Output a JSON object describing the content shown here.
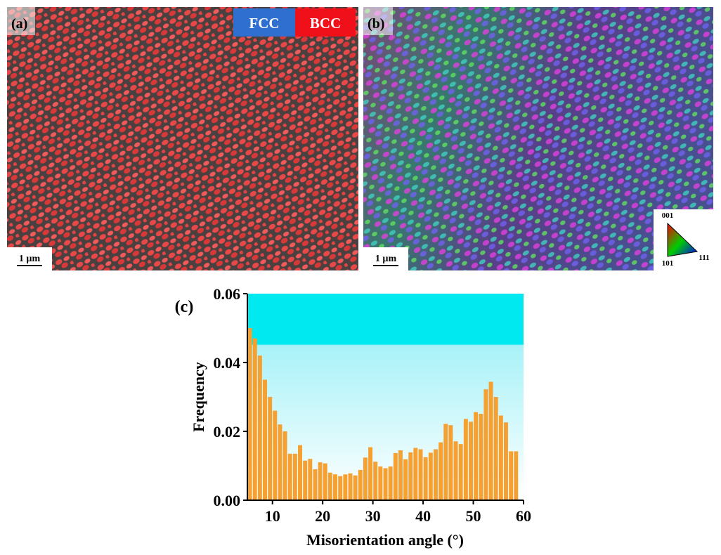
{
  "panel_a": {
    "label": "(a)",
    "legend": [
      "FCC",
      "BCC"
    ],
    "scale_bar": "1 µm"
  },
  "panel_b": {
    "label": "(b)",
    "scale_bar": "1 µm",
    "ipf_key": [
      "001",
      "101",
      "111"
    ]
  },
  "chart_data": {
    "type": "histogram",
    "panel_label": "(c)",
    "xlabel": "Misorientation angle (°)",
    "ylabel": "Frequency",
    "bins": [
      5,
      6,
      7,
      8,
      9,
      10,
      11,
      12,
      13,
      14,
      15,
      16,
      17,
      18,
      19,
      20,
      21,
      22,
      23,
      24,
      25,
      26,
      27,
      28,
      29,
      30,
      31,
      32,
      33,
      34,
      35,
      36,
      37,
      38,
      39,
      40,
      41,
      42,
      43,
      44,
      45,
      46,
      47,
      48,
      49,
      50,
      51,
      52,
      53,
      54,
      55,
      56,
      57,
      58,
      59
    ],
    "values": [
      0.05,
      0.047,
      0.042,
      0.035,
      0.03,
      0.026,
      0.022,
      0.02,
      0.0135,
      0.0135,
      0.016,
      0.0115,
      0.012,
      0.009,
      0.011,
      0.0107,
      0.008,
      0.0075,
      0.007,
      0.0075,
      0.0078,
      0.0072,
      0.0088,
      0.0124,
      0.0154,
      0.0112,
      0.0098,
      0.0093,
      0.0098,
      0.0137,
      0.0145,
      0.0119,
      0.0139,
      0.0152,
      0.0148,
      0.0125,
      0.0138,
      0.0148,
      0.0168,
      0.0222,
      0.0218,
      0.0171,
      0.0163,
      0.0236,
      0.0228,
      0.0256,
      0.0251,
      0.0322,
      0.0344,
      0.03,
      0.0246,
      0.0226,
      0.0142,
      0.0142
    ],
    "color": "#f5a030",
    "xlim": [
      5,
      60
    ],
    "xticks": [
      10,
      20,
      30,
      40,
      50,
      60
    ],
    "ylim": [
      0,
      0.06
    ],
    "yticks": [
      {
        "value": 0,
        "label": "0.00"
      },
      {
        "value": 0.02,
        "label": "0.02"
      },
      {
        "value": 0.04,
        "label": "0.04"
      },
      {
        "value": 0.06,
        "label": "0.06"
      }
    ]
  }
}
